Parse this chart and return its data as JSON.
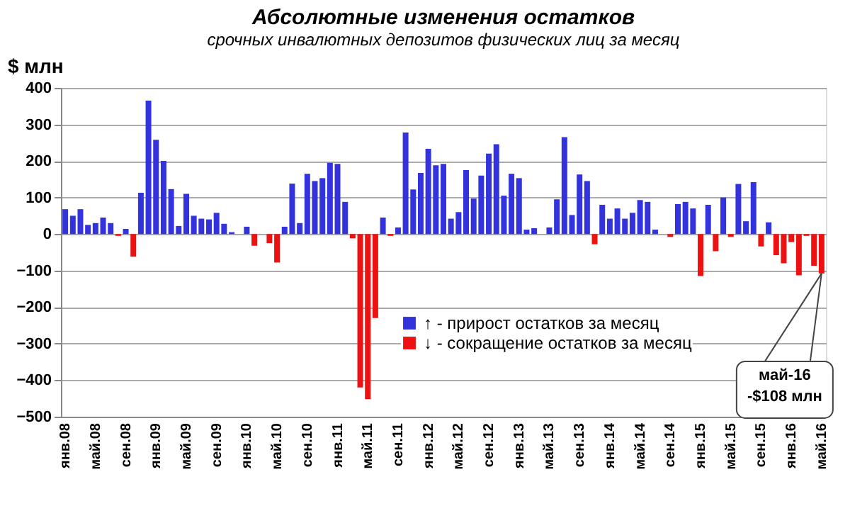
{
  "chart_data": {
    "type": "bar",
    "title": "Абсолютные изменения остатков",
    "subtitle": "срочных инвалютных депозитов физических лиц за месяц",
    "ylabel": "$ млн",
    "categories": [
      "янв.08",
      null,
      null,
      null,
      "май.08",
      null,
      null,
      null,
      "сен.08",
      null,
      null,
      null,
      "янв.09",
      null,
      null,
      null,
      "май.09",
      null,
      null,
      null,
      "сен.09",
      null,
      null,
      null,
      "янв.10",
      null,
      null,
      null,
      "май.10",
      null,
      null,
      null,
      "сен.10",
      null,
      null,
      null,
      "янв.11",
      null,
      null,
      null,
      "май.11",
      null,
      null,
      null,
      "сен.11",
      null,
      null,
      null,
      "янв.12",
      null,
      null,
      null,
      "май.12",
      null,
      null,
      null,
      "сен.12",
      null,
      null,
      null,
      "янв.13",
      null,
      null,
      null,
      "май.13",
      null,
      null,
      null,
      "сен.13",
      null,
      null,
      null,
      "янв.14",
      null,
      null,
      null,
      "май.14",
      null,
      null,
      null,
      "сен.14",
      null,
      null,
      null,
      "янв.15",
      null,
      null,
      null,
      "май.15",
      null,
      null,
      null,
      "сен.15",
      null,
      null,
      null,
      "янв.16",
      null,
      null,
      null,
      "май.16"
    ],
    "series": [
      {
        "name": "↑ - прирост остатков за месяц",
        "color": "#3333dd",
        "values": [
          68,
          50,
          68,
          25,
          30,
          45,
          30,
          null,
          14,
          null,
          113,
          365,
          258,
          200,
          123,
          22,
          110,
          50,
          42,
          40,
          58,
          28,
          5,
          0,
          20,
          null,
          0,
          null,
          null,
          20,
          138,
          30,
          165,
          145,
          153,
          195,
          192,
          88,
          null,
          null,
          null,
          null,
          45,
          null,
          18,
          278,
          122,
          167,
          233,
          188,
          192,
          42,
          60,
          175,
          97,
          160,
          220,
          246,
          105,
          165,
          153,
          12,
          16,
          0,
          18,
          95,
          265,
          52,
          163,
          145,
          null,
          80,
          42,
          70,
          42,
          58,
          93,
          88,
          12,
          0,
          null,
          82,
          88,
          70,
          null,
          80,
          null,
          100,
          null,
          137,
          35,
          142,
          null,
          32,
          null,
          null,
          null,
          null,
          null,
          null,
          null
        ]
      },
      {
        "name": "↓ - сокращение остатков за месяц",
        "color": "#ee1111",
        "values": [
          null,
          null,
          null,
          null,
          null,
          null,
          null,
          -5,
          null,
          -62,
          null,
          null,
          null,
          null,
          null,
          null,
          null,
          null,
          null,
          null,
          null,
          null,
          null,
          null,
          null,
          -32,
          null,
          -25,
          -78,
          null,
          null,
          null,
          null,
          null,
          null,
          null,
          null,
          null,
          -12,
          -420,
          -452,
          -230,
          null,
          -5,
          null,
          null,
          null,
          null,
          null,
          null,
          null,
          null,
          null,
          null,
          null,
          null,
          null,
          null,
          null,
          null,
          null,
          null,
          null,
          null,
          null,
          null,
          null,
          null,
          null,
          null,
          -28,
          null,
          null,
          null,
          null,
          null,
          null,
          null,
          null,
          null,
          -8,
          null,
          null,
          null,
          -115,
          null,
          -47,
          null,
          -8,
          null,
          null,
          null,
          -34,
          null,
          -58,
          -80,
          -22,
          -113,
          -5,
          -87,
          -108
        ]
      }
    ],
    "ylim": [
      -500,
      400
    ],
    "yticks": [
      -500,
      -400,
      -300,
      -200,
      -100,
      0,
      100,
      200,
      300,
      400
    ],
    "grid": "y",
    "legend": "bottom",
    "annotations": [
      {
        "text": "май-16\n-$108 млн",
        "x": "май.16",
        "y": -108
      }
    ]
  }
}
